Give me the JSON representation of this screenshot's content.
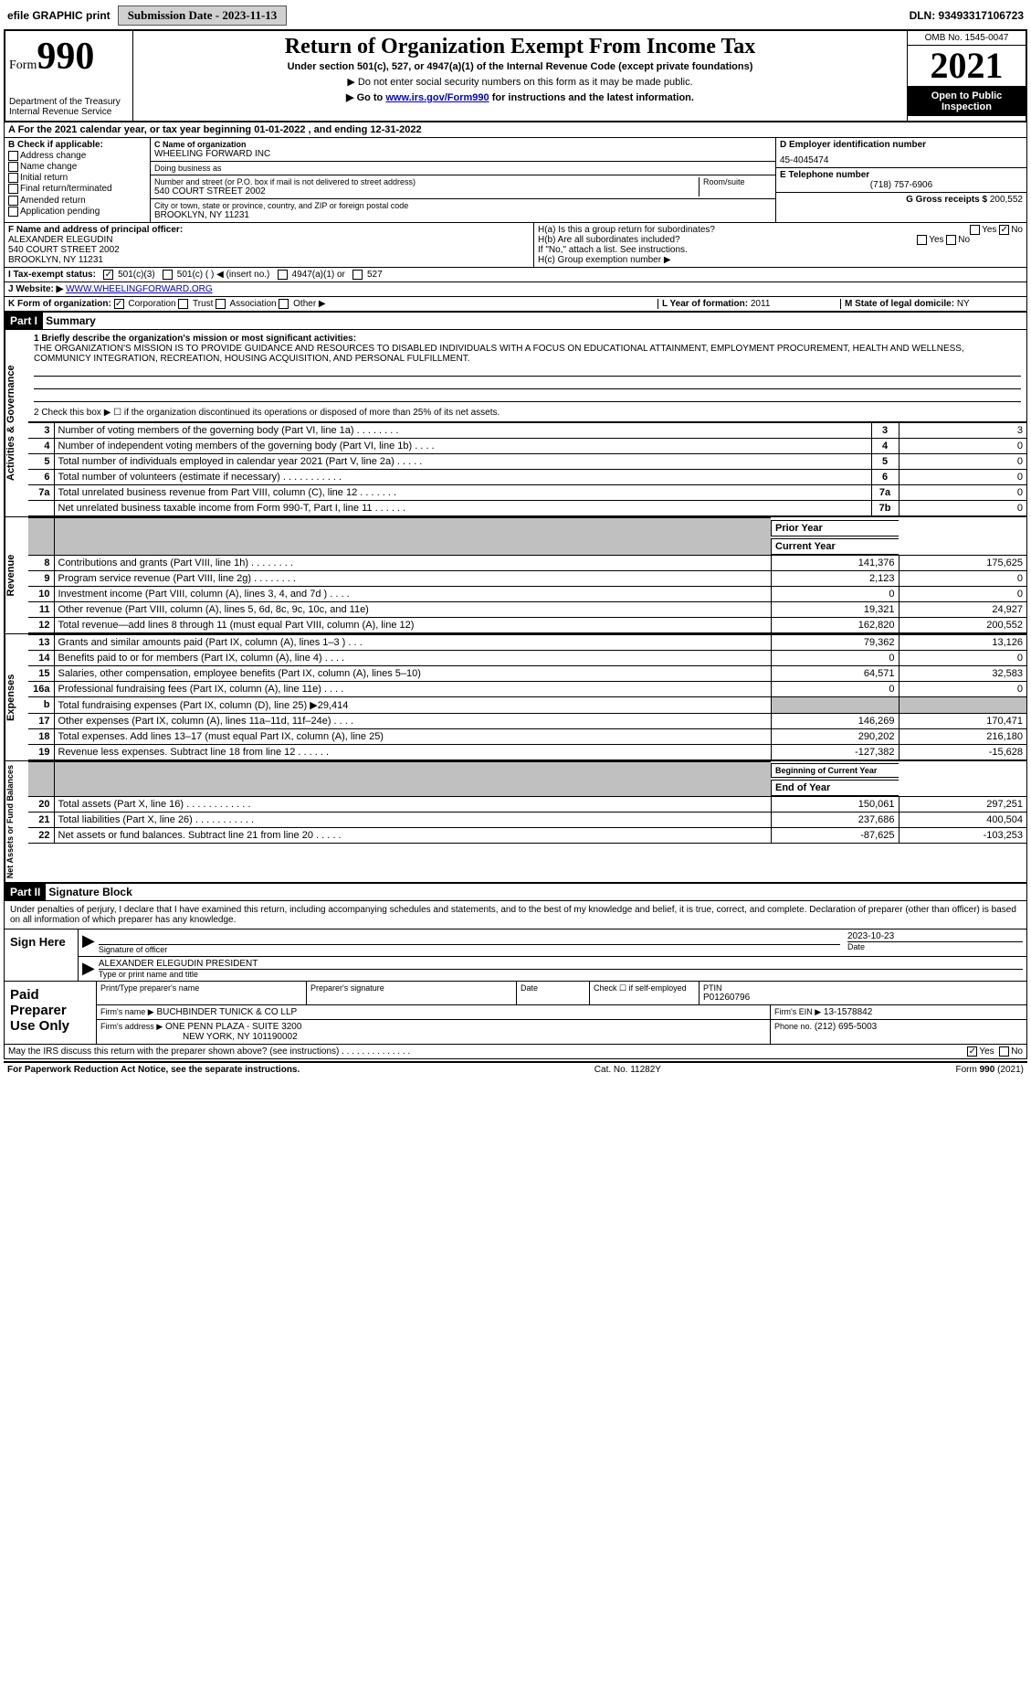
{
  "topbar": {
    "efile": "efile GRAPHIC print",
    "submission_btn": "Submission Date - 2023-11-13",
    "dln": "DLN: 93493317106723"
  },
  "header": {
    "form_prefix": "Form",
    "form_number": "990",
    "dept": "Department of the Treasury",
    "irs": "Internal Revenue Service",
    "title": "Return of Organization Exempt From Income Tax",
    "subtitle": "Under section 501(c), 527, or 4947(a)(1) of the Internal Revenue Code (except private foundations)",
    "note1": "▶ Do not enter social security numbers on this form as it may be made public.",
    "note2_pre": "▶ Go to ",
    "note2_link": "www.irs.gov/Form990",
    "note2_post": " for instructions and the latest information.",
    "omb": "OMB No. 1545-0047",
    "year": "2021",
    "inspect1": "Open to Public",
    "inspect2": "Inspection"
  },
  "rowA": "A For the 2021 calendar year, or tax year beginning 01-01-2022    , and ending 12-31-2022",
  "colB": {
    "title": "B Check if applicable:",
    "items": [
      "Address change",
      "Name change",
      "Initial return",
      "Final return/terminated",
      "Amended return",
      "Application pending"
    ]
  },
  "colC": {
    "name_lbl": "C Name of organization",
    "name": "WHEELING FORWARD INC",
    "dba_lbl": "Doing business as",
    "dba": "",
    "addr_lbl": "Number and street (or P.O. box if mail is not delivered to street address)",
    "room_lbl": "Room/suite",
    "addr": "540 COURT STREET 2002",
    "city_lbl": "City or town, state or province, country, and ZIP or foreign postal code",
    "city": "BROOKLYN, NY  11231"
  },
  "colD": {
    "ein_lbl": "D Employer identification number",
    "ein": "45-4045474",
    "tel_lbl": "E Telephone number",
    "tel": "(718) 757-6906",
    "gross_lbl": "G Gross receipts $",
    "gross": "200,552"
  },
  "rowF": {
    "lbl": "F Name and address of principal officer:",
    "name": "ALEXANDER ELEGUDIN",
    "addr1": "540 COURT STREET 2002",
    "addr2": "BROOKLYN, NY  11231"
  },
  "rowH": {
    "ha": "H(a)  Is this a group return for subordinates?",
    "ha_yes": "Yes",
    "ha_no": "No",
    "hb": "H(b)  Are all subordinates included?",
    "hb_note": "If \"No,\" attach a list. See instructions.",
    "hc": "H(c)  Group exemption number ▶"
  },
  "rowI": {
    "lbl": "I  Tax-exempt status:",
    "opts": [
      "501(c)(3)",
      "501(c) (   ) ◀ (insert no.)",
      "4947(a)(1) or",
      "527"
    ]
  },
  "rowJ": {
    "lbl": "J  Website: ▶",
    "val": "WWW.WHEELINGFORWARD.ORG"
  },
  "rowK": {
    "lbl": "K Form of organization:",
    "opts": [
      "Corporation",
      "Trust",
      "Association",
      "Other ▶"
    ]
  },
  "rowL": {
    "lbl": "L Year of formation:",
    "val": "2011"
  },
  "rowM": {
    "lbl": "M State of legal domicile:",
    "val": "NY"
  },
  "part1": {
    "bar": "Part I",
    "title": "Summary",
    "side1": "Activities & Governance",
    "side2": "Revenue",
    "side3": "Expenses",
    "side4": "Net Assets or Fund Balances",
    "q1_lbl": "1  Briefly describe the organization's mission or most significant activities:",
    "q1_val": "THE ORGANIZATION'S MISSION IS TO PROVIDE GUIDANCE AND RESOURCES TO DISABLED INDIVIDUALS WITH A FOCUS ON EDUCATIONAL ATTAINMENT, EMPLOYMENT PROCUREMENT, HEALTH AND WELLNESS, COMMUNICY INTEGRATION, RECREATION, HOUSING ACQUISITION, AND PERSONAL FULFILLMENT.",
    "q2": "2   Check this box ▶ ☐  if the organization discontinued its operations or disposed of more than 25% of its net assets.",
    "lines_top": [
      {
        "n": "3",
        "t": "Number of voting members of the governing body (Part VI, line 1a)   .    .    .    .    .    .    .    .",
        "box": "3",
        "v": "3"
      },
      {
        "n": "4",
        "t": "Number of independent voting members of the governing body (Part VI, line 1b)    .    .    .    .",
        "box": "4",
        "v": "0"
      },
      {
        "n": "5",
        "t": "Total number of individuals employed in calendar year 2021 (Part V, line 2a)   .    .    .    .    .",
        "box": "5",
        "v": "0"
      },
      {
        "n": "6",
        "t": "Total number of volunteers (estimate if necessary)    .    .    .    .    .    .    .    .    .    .    .",
        "box": "6",
        "v": "0"
      },
      {
        "n": "7a",
        "t": "Total unrelated business revenue from Part VIII, column (C), line 12   .    .    .    .    .    .    .",
        "box": "7a",
        "v": "0"
      },
      {
        "n": "",
        "t": "Net unrelated business taxable income from Form 990-T, Part I, line 11   .    .    .    .    .    .",
        "box": "7b",
        "v": "0"
      }
    ],
    "hdr_prior": "Prior Year",
    "hdr_curr": "Current Year",
    "rev": [
      {
        "n": "8",
        "t": "Contributions and grants (Part VIII, line 1h)   .    .    .    .    .    .    .    .",
        "p": "141,376",
        "c": "175,625"
      },
      {
        "n": "9",
        "t": "Program service revenue (Part VIII, line 2g)   .    .    .    .    .    .    .    .",
        "p": "2,123",
        "c": "0"
      },
      {
        "n": "10",
        "t": "Investment income (Part VIII, column (A), lines 3, 4, and 7d )   .    .    .    .",
        "p": "0",
        "c": "0"
      },
      {
        "n": "11",
        "t": "Other revenue (Part VIII, column (A), lines 5, 6d, 8c, 9c, 10c, and 11e)",
        "p": "19,321",
        "c": "24,927"
      },
      {
        "n": "12",
        "t": "Total revenue—add lines 8 through 11 (must equal Part VIII, column (A), line 12)",
        "p": "162,820",
        "c": "200,552"
      }
    ],
    "exp": [
      {
        "n": "13",
        "t": "Grants and similar amounts paid (Part IX, column (A), lines 1–3 )   .    .    .",
        "p": "79,362",
        "c": "13,126"
      },
      {
        "n": "14",
        "t": "Benefits paid to or for members (Part IX, column (A), line 4)   .    .    .    .",
        "p": "0",
        "c": "0"
      },
      {
        "n": "15",
        "t": "Salaries, other compensation, employee benefits (Part IX, column (A), lines 5–10)",
        "p": "64,571",
        "c": "32,583"
      },
      {
        "n": "16a",
        "t": "Professional fundraising fees (Part IX, column (A), line 11e)   .    .    .    .",
        "p": "0",
        "c": "0"
      },
      {
        "n": "b",
        "t": "Total fundraising expenses (Part IX, column (D), line 25) ▶29,414",
        "p": "",
        "c": "",
        "shade": true
      },
      {
        "n": "17",
        "t": "Other expenses (Part IX, column (A), lines 11a–11d, 11f–24e)   .    .    .    .",
        "p": "146,269",
        "c": "170,471"
      },
      {
        "n": "18",
        "t": "Total expenses. Add lines 13–17 (must equal Part IX, column (A), line 25)",
        "p": "290,202",
        "c": "216,180"
      },
      {
        "n": "19",
        "t": "Revenue less expenses. Subtract line 18 from line 12   .    .    .    .    .    .",
        "p": "-127,382",
        "c": "-15,628"
      }
    ],
    "hdr_beg": "Beginning of Current Year",
    "hdr_end": "End of Year",
    "net": [
      {
        "n": "20",
        "t": "Total assets (Part X, line 16)   .    .    .    .    .    .    .    .    .    .    .    .",
        "p": "150,061",
        "c": "297,251"
      },
      {
        "n": "21",
        "t": "Total liabilities (Part X, line 26)   .    .    .    .    .    .    .    .    .    .    .",
        "p": "237,686",
        "c": "400,504"
      },
      {
        "n": "22",
        "t": "Net assets or fund balances. Subtract line 21 from line 20   .    .    .    .    .",
        "p": "-87,625",
        "c": "-103,253"
      }
    ]
  },
  "part2": {
    "bar": "Part II",
    "title": "Signature Block",
    "decl": "Under penalties of perjury, I declare that I have examined this return, including accompanying schedules and statements, and to the best of my knowledge and belief, it is true, correct, and complete. Declaration of preparer (other than officer) is based on all information of which preparer has any knowledge.",
    "sign_here": "Sign Here",
    "sig_officer": "Signature of officer",
    "sig_date": "2023-10-23",
    "date_lbl": "Date",
    "typed": "ALEXANDER ELEGUDIN  PRESIDENT",
    "typed_lbl": "Type or print name and title",
    "paid": "Paid Preparer Use Only",
    "pp_name_lbl": "Print/Type preparer's name",
    "pp_sig_lbl": "Preparer's signature",
    "pp_date_lbl": "Date",
    "pp_check": "Check ☐ if self-employed",
    "ptin_lbl": "PTIN",
    "ptin": "P01260796",
    "firm_name_lbl": "Firm's name    ▶",
    "firm_name": "BUCHBINDER TUNICK & CO LLP",
    "firm_ein_lbl": "Firm's EIN ▶",
    "firm_ein": "13-1578842",
    "firm_addr_lbl": "Firm's address ▶",
    "firm_addr1": "ONE PENN PLAZA - SUITE 3200",
    "firm_addr2": "NEW YORK, NY  101190002",
    "firm_phone_lbl": "Phone no.",
    "firm_phone": "(212) 695-5003",
    "discuss": "May the IRS discuss this return with the preparer shown above? (see instructions)   .    .    .    .    .    .    .    .    .    .    .    .    .    .",
    "yes": "Yes",
    "no": "No"
  },
  "footer": {
    "left": "For Paperwork Reduction Act Notice, see the separate instructions.",
    "mid": "Cat. No. 11282Y",
    "right": "Form 990 (2021)"
  },
  "colors": {
    "bar": "#000000",
    "link": "#0000cc",
    "shade": "#c0c0c0"
  }
}
